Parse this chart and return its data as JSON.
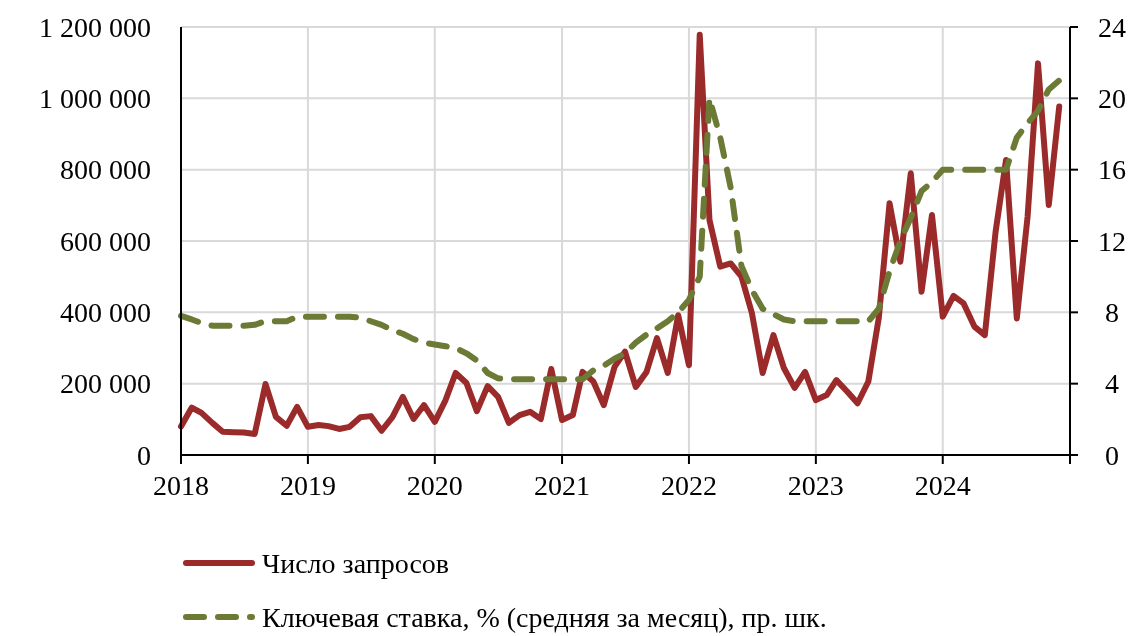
{
  "chart_data": {
    "type": "line",
    "x": [
      "2018-01",
      "2018-02",
      "2018-03",
      "2018-04",
      "2018-05",
      "2018-06",
      "2018-07",
      "2018-08",
      "2018-09",
      "2018-10",
      "2018-11",
      "2018-12",
      "2019-01",
      "2019-02",
      "2019-03",
      "2019-04",
      "2019-05",
      "2019-06",
      "2019-07",
      "2019-08",
      "2019-09",
      "2019-10",
      "2019-11",
      "2019-12",
      "2020-01",
      "2020-02",
      "2020-03",
      "2020-04",
      "2020-05",
      "2020-06",
      "2020-07",
      "2020-08",
      "2020-09",
      "2020-10",
      "2020-11",
      "2020-12",
      "2021-01",
      "2021-02",
      "2021-03",
      "2021-04",
      "2021-05",
      "2021-06",
      "2021-07",
      "2021-08",
      "2021-09",
      "2021-10",
      "2021-11",
      "2021-12",
      "2022-01",
      "2022-02",
      "2022-03",
      "2022-04",
      "2022-05",
      "2022-06",
      "2022-07",
      "2022-08",
      "2022-09",
      "2022-10",
      "2022-11",
      "2022-12",
      "2023-01",
      "2023-02",
      "2023-03",
      "2023-04",
      "2023-05",
      "2023-06",
      "2023-07",
      "2023-08",
      "2023-09",
      "2023-10",
      "2023-11",
      "2023-12",
      "2024-01",
      "2024-02",
      "2024-03",
      "2024-04",
      "2024-05",
      "2024-06",
      "2024-07",
      "2024-08",
      "2024-09",
      "2024-10",
      "2024-11",
      "2024-12"
    ],
    "series": [
      {
        "name": "Число запросов",
        "color": "#9b2a2a",
        "line_style": "solid",
        "values": [
          80000,
          133000,
          118000,
          90000,
          65000,
          64000,
          63000,
          59000,
          199000,
          107000,
          82000,
          135000,
          79000,
          84000,
          81000,
          73000,
          79000,
          106000,
          109000,
          68000,
          106000,
          163000,
          101000,
          140000,
          93000,
          154000,
          230000,
          202000,
          123000,
          193000,
          163000,
          90000,
          112000,
          121000,
          101000,
          241000,
          98000,
          112000,
          233000,
          206000,
          140000,
          247000,
          290000,
          191000,
          233000,
          328000,
          230000,
          392000,
          252000,
          1178000,
          659000,
          528000,
          537000,
          500000,
          398000,
          230000,
          336000,
          244000,
          188000,
          233000,
          154000,
          168000,
          210000,
          178000,
          145000,
          206000,
          384000,
          706000,
          542000,
          790000,
          458000,
          673000,
          388000,
          446000,
          425000,
          360000,
          336000,
          626000,
          827000,
          383000,
          668000,
          1098000,
          701000,
          977000
        ]
      },
      {
        "name": "Ключевая ставка, % (средняя за месяц), пр. шк.",
        "color": "#6b7a35",
        "line_style": "dashed",
        "axis": "y2",
        "values": [
          7.8,
          7.6,
          7.4,
          7.25,
          7.25,
          7.25,
          7.25,
          7.3,
          7.5,
          7.5,
          7.5,
          7.75,
          7.75,
          7.75,
          7.75,
          7.75,
          7.75,
          7.7,
          7.5,
          7.3,
          7.0,
          6.8,
          6.5,
          6.3,
          6.2,
          6.1,
          6.0,
          5.7,
          5.3,
          4.6,
          4.3,
          4.25,
          4.25,
          4.25,
          4.25,
          4.25,
          4.25,
          4.25,
          4.25,
          4.75,
          5.0,
          5.4,
          5.7,
          6.3,
          6.75,
          7.1,
          7.5,
          8.0,
          8.7,
          10.0,
          20.0,
          17.8,
          15.0,
          10.6,
          9.25,
          8.2,
          7.9,
          7.6,
          7.5,
          7.5,
          7.5,
          7.5,
          7.5,
          7.5,
          7.5,
          7.5,
          8.2,
          10.3,
          12.0,
          13.3,
          14.8,
          15.3,
          16.0,
          16.0,
          16.0,
          16.0,
          16.0,
          16.0,
          16.0,
          17.8,
          18.6,
          19.3,
          20.5,
          21.0
        ]
      }
    ],
    "xlim": [
      "2018-01",
      "2025-01"
    ],
    "xticks": [
      "2018",
      "2019",
      "2020",
      "2021",
      "2022",
      "2023",
      "2024",
      {
        "value": "2025",
        "label": null
      }
    ],
    "ylim": [
      0,
      1200000
    ],
    "yticks": [
      {
        "value": 0,
        "label": "0"
      },
      {
        "value": 200000,
        "label": "200 000"
      },
      {
        "value": 400000,
        "label": "400 000"
      },
      {
        "value": 600000,
        "label": "600 000"
      },
      {
        "value": 800000,
        "label": "800 000"
      },
      {
        "value": 1000000,
        "label": "1 000 000"
      },
      {
        "value": 1200000,
        "label": "1 200 000"
      }
    ],
    "y2lim": [
      0,
      24
    ],
    "y2ticks": [
      0,
      4,
      8,
      12,
      16,
      20,
      24
    ],
    "grid": true,
    "legend": "bottom"
  }
}
